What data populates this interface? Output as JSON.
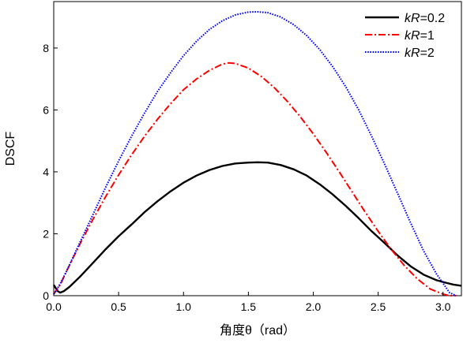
{
  "chart_data": {
    "type": "line",
    "xlabel": "角度θ（rad）",
    "ylabel": "DSCF",
    "xlim": [
      0,
      3.1416
    ],
    "ylim": [
      0,
      9.5
    ],
    "xticks": [
      "0.0",
      "0.5",
      "1.0",
      "1.5",
      "2.0",
      "2.5",
      "3.0"
    ],
    "xtick_values": [
      0,
      0.5,
      1.0,
      1.5,
      2.0,
      2.5,
      3.0
    ],
    "yticks": [
      "0",
      "2",
      "4",
      "6",
      "8"
    ],
    "ytick_values": [
      0,
      2,
      4,
      6,
      8
    ],
    "legend_position": "top-right",
    "grid": false,
    "series": [
      {
        "name": "kR=0.2",
        "legend_prefix": "kR",
        "legend_suffix": "=0.2",
        "color": "#000000",
        "style": "solid",
        "x": [
          0,
          0.03,
          0.05,
          0.08,
          0.12,
          0.2,
          0.3,
          0.4,
          0.5,
          0.6,
          0.7,
          0.8,
          0.9,
          1.0,
          1.1,
          1.2,
          1.3,
          1.4,
          1.5,
          1.57,
          1.65,
          1.75,
          1.85,
          1.95,
          2.05,
          2.15,
          2.25,
          2.35,
          2.45,
          2.55,
          2.65,
          2.75,
          2.85,
          2.95,
          3.02,
          3.08,
          3.1416
        ],
        "y": [
          0.35,
          0.15,
          0.1,
          0.15,
          0.28,
          0.6,
          1.05,
          1.5,
          1.92,
          2.3,
          2.7,
          3.05,
          3.37,
          3.65,
          3.88,
          4.06,
          4.19,
          4.27,
          4.3,
          4.31,
          4.3,
          4.22,
          4.08,
          3.88,
          3.6,
          3.27,
          2.9,
          2.5,
          2.08,
          1.7,
          1.3,
          0.95,
          0.68,
          0.5,
          0.42,
          0.36,
          0.32
        ]
      },
      {
        "name": "kR=1",
        "legend_prefix": "kR",
        "legend_suffix": "=1",
        "color": "#ff0000",
        "style": "dashdot",
        "x": [
          0,
          0.05,
          0.1,
          0.2,
          0.3,
          0.4,
          0.5,
          0.6,
          0.7,
          0.8,
          0.9,
          1.0,
          1.1,
          1.2,
          1.3,
          1.35,
          1.4,
          1.5,
          1.6,
          1.7,
          1.8,
          1.9,
          2.0,
          2.1,
          2.2,
          2.3,
          2.4,
          2.5,
          2.6,
          2.7,
          2.8,
          2.9,
          3.0,
          3.05,
          3.1
        ],
        "y": [
          0.05,
          0.35,
          0.8,
          1.65,
          2.45,
          3.2,
          3.9,
          4.55,
          5.15,
          5.7,
          6.2,
          6.65,
          7.0,
          7.28,
          7.48,
          7.52,
          7.5,
          7.35,
          7.08,
          6.72,
          6.28,
          5.78,
          5.23,
          4.63,
          4.0,
          3.35,
          2.7,
          2.08,
          1.5,
          0.98,
          0.55,
          0.22,
          0.05,
          0.0,
          0.0
        ]
      },
      {
        "name": "kR=2",
        "legend_prefix": "kR",
        "legend_suffix": "=2",
        "color": "#0000ff",
        "style": "dotted",
        "x": [
          0,
          0.05,
          0.1,
          0.2,
          0.3,
          0.4,
          0.5,
          0.6,
          0.7,
          0.8,
          0.9,
          1.0,
          1.1,
          1.2,
          1.3,
          1.4,
          1.5,
          1.57,
          1.65,
          1.75,
          1.85,
          1.95,
          2.05,
          2.15,
          2.25,
          2.35,
          2.45,
          2.55,
          2.65,
          2.75,
          2.85,
          2.95,
          3.05,
          3.1
        ],
        "y": [
          0.05,
          0.38,
          0.8,
          1.7,
          2.6,
          3.5,
          4.35,
          5.15,
          5.9,
          6.6,
          7.2,
          7.75,
          8.22,
          8.6,
          8.88,
          9.07,
          9.16,
          9.17,
          9.14,
          9.0,
          8.75,
          8.4,
          7.95,
          7.4,
          6.75,
          6.0,
          5.15,
          4.25,
          3.3,
          2.35,
          1.45,
          0.7,
          0.1,
          0.0
        ]
      }
    ]
  }
}
